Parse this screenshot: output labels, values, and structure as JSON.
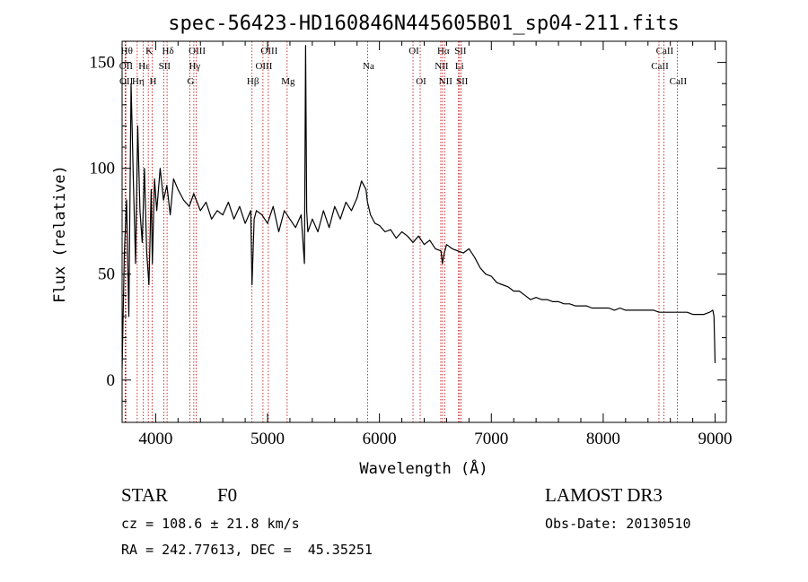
{
  "chart_data": {
    "type": "line",
    "title": "spec-56423-HD160846N445605B01_sp04-211.fits",
    "xlabel": "Wavelength (Å)",
    "ylabel": "Flux (relative)",
    "xlim": [
      3700,
      9100
    ],
    "ylim": [
      -20,
      160
    ],
    "xticks": [
      4000,
      5000,
      6000,
      7000,
      8000,
      9000
    ],
    "yticks": [
      0,
      50,
      100,
      150
    ],
    "series": [
      {
        "name": "flux",
        "x": [
          3700,
          3720,
          3740,
          3760,
          3780,
          3800,
          3820,
          3840,
          3860,
          3880,
          3900,
          3920,
          3940,
          3960,
          3970,
          3990,
          4010,
          4040,
          4070,
          4100,
          4130,
          4160,
          4200,
          4250,
          4300,
          4340,
          4400,
          4450,
          4500,
          4550,
          4600,
          4650,
          4700,
          4750,
          4800,
          4850,
          4861,
          4880,
          4900,
          4950,
          5000,
          5050,
          5100,
          5150,
          5200,
          5250,
          5300,
          5330,
          5340,
          5350,
          5360,
          5400,
          5450,
          5500,
          5550,
          5600,
          5650,
          5700,
          5750,
          5800,
          5840,
          5880,
          5893,
          5920,
          5960,
          6000,
          6050,
          6100,
          6150,
          6200,
          6250,
          6300,
          6350,
          6400,
          6450,
          6500,
          6550,
          6563,
          6580,
          6600,
          6650,
          6700,
          6750,
          6800,
          6850,
          6900,
          6950,
          7000,
          7050,
          7100,
          7150,
          7200,
          7250,
          7300,
          7350,
          7400,
          7450,
          7500,
          7550,
          7600,
          7650,
          7700,
          7750,
          7800,
          7850,
          7900,
          7950,
          8000,
          8050,
          8100,
          8150,
          8200,
          8250,
          8300,
          8350,
          8400,
          8450,
          8500,
          8550,
          8600,
          8650,
          8700,
          8750,
          8800,
          8850,
          8900,
          8950,
          8980,
          8990,
          9000
        ],
        "values": [
          5,
          60,
          85,
          30,
          140,
          95,
          55,
          120,
          80,
          65,
          100,
          60,
          45,
          90,
          55,
          95,
          80,
          100,
          85,
          92,
          78,
          95,
          90,
          85,
          82,
          88,
          80,
          84,
          76,
          80,
          78,
          84,
          76,
          82,
          74,
          80,
          45,
          76,
          80,
          78,
          74,
          82,
          70,
          80,
          76,
          72,
          78,
          55,
          158,
          80,
          70,
          76,
          70,
          80,
          72,
          82,
          76,
          84,
          80,
          86,
          94,
          90,
          84,
          78,
          74,
          73,
          70,
          71,
          67,
          70,
          68,
          65,
          68,
          64,
          66,
          62,
          61,
          55,
          60,
          64,
          62,
          61,
          60,
          62,
          58,
          53,
          50,
          49,
          46,
          45,
          44,
          42,
          42,
          40,
          38,
          39,
          38,
          38,
          37,
          37,
          36,
          36,
          35,
          35,
          35,
          34,
          34,
          34,
          34,
          33,
          34,
          33,
          33,
          33,
          33,
          33,
          33,
          32,
          32,
          32,
          32,
          32,
          32,
          31,
          31,
          31,
          32,
          33,
          30,
          8
        ]
      }
    ],
    "line_markers": [
      {
        "name": "OII",
        "wavelength": 3727,
        "row": 2
      },
      {
        "name": "Hθ",
        "wavelength": 3734,
        "row": 1
      },
      {
        "name": "OII",
        "wavelength": 3729,
        "row": 3
      },
      {
        "name": "Hη",
        "wavelength": 3835,
        "row": 3
      },
      {
        "name": "Hε",
        "wavelength": 3889,
        "row": 2
      },
      {
        "name": "K",
        "wavelength": 3934,
        "row": 1
      },
      {
        "name": "H",
        "wavelength": 3969,
        "row": 3
      },
      {
        "name": "SII",
        "wavelength": 4072,
        "row": 2
      },
      {
        "name": "Hδ",
        "wavelength": 4102,
        "row": 1
      },
      {
        "name": "G",
        "wavelength": 4305,
        "row": 3
      },
      {
        "name": "Hγ",
        "wavelength": 4341,
        "row": 2
      },
      {
        "name": "OIII",
        "wavelength": 4363,
        "row": 1
      },
      {
        "name": "Hβ",
        "wavelength": 4861,
        "row": 3
      },
      {
        "name": "OIII",
        "wavelength": 4959,
        "row": 2
      },
      {
        "name": "OIII",
        "wavelength": 5007,
        "row": 1
      },
      {
        "name": "Mg",
        "wavelength": 5175,
        "row": 3
      },
      {
        "name": "Na",
        "wavelength": 5894,
        "row": 2
      },
      {
        "name": "OI",
        "wavelength": 6300,
        "row": 1
      },
      {
        "name": "OI",
        "wavelength": 6364,
        "row": 3
      },
      {
        "name": "NII",
        "wavelength": 6548,
        "row": 2
      },
      {
        "name": "Hα",
        "wavelength": 6563,
        "row": 1
      },
      {
        "name": "NII",
        "wavelength": 6583,
        "row": 3
      },
      {
        "name": "Li",
        "wavelength": 6707,
        "row": 2
      },
      {
        "name": "SII",
        "wavelength": 6716,
        "row": 1
      },
      {
        "name": "SII",
        "wavelength": 6731,
        "row": 3
      },
      {
        "name": "CaII",
        "wavelength": 8498,
        "row": 2
      },
      {
        "name": "CaII",
        "wavelength": 8542,
        "row": 1
      },
      {
        "name": "CaII",
        "wavelength": 8662,
        "row": 3
      }
    ],
    "colors": {
      "spectrum": "#000000",
      "markers": "#c00000",
      "axes": "#000000"
    }
  },
  "info": {
    "object_class": "STAR",
    "subclass": "F0",
    "survey": "LAMOST DR3",
    "redshift": "cz = 108.6 ± 21.8 km/s",
    "obs_date": "Obs-Date: 20130510",
    "coords": "RA = 242.77613, DEC =  45.35251"
  }
}
